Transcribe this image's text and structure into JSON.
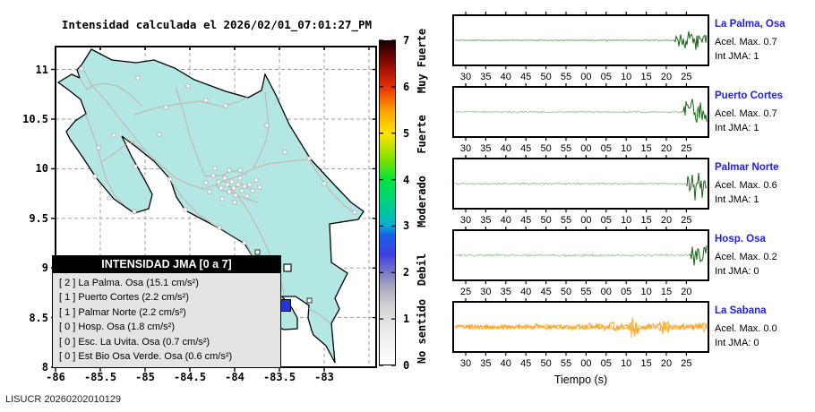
{
  "title": "Intensidad calculada el 2026/02/01_07:01:27_PM",
  "watermark": "LISUCR 20260202010129",
  "map": {
    "x_tick_labels": [
      "-86",
      "-85.5",
      "-85",
      "-84.5",
      "-84",
      "-83.5",
      "-83"
    ],
    "y_tick_labels": [
      "11",
      "10.5",
      "10",
      "9.5",
      "9",
      "8.5",
      "8"
    ],
    "land_color": "#b3e7e3",
    "road_color": "#c3b9b3",
    "coast_color": "#000000",
    "station_marker_color": "#ffffff",
    "epicenter_color": "#2337d8"
  },
  "legend": {
    "title": "INTENSIDAD JMA [0 a 7]",
    "items": [
      "[ 2 ]  La Palma. Osa (15.1 cm/s²)",
      "[ 1 ]  Puerto Cortes (2.2 cm/s²)",
      "[ 1 ]  Palmar Norte (2.2 cm/s²)",
      "[ 0 ]  Hosp. Osa (1.8 cm/s²)",
      "[ 0 ]  Esc. La Uvita. Osa (0.7 cm/s²)",
      "[ 0 ]  Est Bio Osa Verde. Osa (0.6 cm/s²)"
    ]
  },
  "colorbar": {
    "tick_labels": [
      "7",
      "6",
      "5",
      "4",
      "3",
      "2",
      "1",
      "0"
    ],
    "category_labels": [
      "Muy Fuerte",
      "Fuerte",
      "Moderado",
      "Debil",
      "No sentido"
    ],
    "gradient_stops": [
      [
        "0%",
        "#ffffff"
      ],
      [
        "10%",
        "#ececec"
      ],
      [
        "18%",
        "#d2d2d6"
      ],
      [
        "24%",
        "#a8a8c0"
      ],
      [
        "28.6%",
        "#7878c8"
      ],
      [
        "34%",
        "#4040e0"
      ],
      [
        "40%",
        "#1860e8"
      ],
      [
        "43%",
        "#00b0d0"
      ],
      [
        "50%",
        "#00d088"
      ],
      [
        "57.1%",
        "#00e43c"
      ],
      [
        "63%",
        "#78e000"
      ],
      [
        "71.4%",
        "#ffe400"
      ],
      [
        "78.6%",
        "#ffa000"
      ],
      [
        "85.7%",
        "#e63200"
      ],
      [
        "93%",
        "#8c0a00"
      ],
      [
        "100%",
        "#1a0000"
      ]
    ]
  },
  "seismograms": {
    "xlabel": "Tiempo (s)",
    "trace_green": "#176617",
    "trace_orange": "#ffa41c",
    "panels": [
      {
        "station": "La Palma, Osa",
        "acel": "Acel. Max. 0.7",
        "int": "Int JMA: 1",
        "ticks": [
          "30",
          "35",
          "40",
          "45",
          "50",
          "55",
          "00",
          "05",
          "10",
          "15",
          "20",
          "25"
        ]
      },
      {
        "station": "Puerto Cortes",
        "acel": "Acel. Max. 0.7",
        "int": "Int JMA: 1",
        "ticks": [
          "30",
          "35",
          "40",
          "45",
          "50",
          "55",
          "00",
          "05",
          "10",
          "15",
          "20",
          "25"
        ]
      },
      {
        "station": "Palmar Norte",
        "acel": "Acel. Max. 0.6",
        "int": "Int JMA: 1",
        "ticks": [
          "30",
          "35",
          "40",
          "45",
          "50",
          "55",
          "00",
          "05",
          "10",
          "15",
          "20",
          "25"
        ]
      },
      {
        "station": "Hosp. Osa",
        "acel": "Acel. Max. 0.2",
        "int": "Int JMA: 0",
        "ticks": [
          "25",
          "30",
          "35",
          "40",
          "45",
          "50",
          "55",
          "00",
          "05",
          "10",
          "15",
          "20"
        ]
      },
      {
        "station": "La Sabana",
        "acel": "Acel. Max. 0.0",
        "int": "Int JMA: 0",
        "ticks": [
          "30",
          "35",
          "40",
          "45",
          "50",
          "55",
          "00",
          "05",
          "10",
          "15",
          "20",
          "25"
        ]
      }
    ]
  },
  "chart_data": [
    {
      "type": "scatter",
      "title": "Intensidad calculada el 2026/02/01_07:01:27_PM",
      "xlim": [
        -86,
        -82.4
      ],
      "ylim": [
        8,
        11.2
      ],
      "x_ticks": [
        -86,
        -85.5,
        -85,
        -84.5,
        -84,
        -83.5,
        -83
      ],
      "y_ticks": [
        8,
        8.5,
        9,
        9.5,
        10,
        10.5,
        11
      ],
      "grid": true,
      "legend_position": "bottom-left",
      "colorbar_scale": {
        "min": 0,
        "max": 7,
        "categories": [
          "No sentido",
          "Debil",
          "Moderado",
          "Fuerte",
          "Muy Fuerte"
        ]
      },
      "points": [
        {
          "name": "La Palma. Osa",
          "intensity_jma": 2,
          "accel_cm_s2": 15.1
        },
        {
          "name": "Puerto Cortes",
          "intensity_jma": 1,
          "accel_cm_s2": 2.2
        },
        {
          "name": "Palmar Norte",
          "intensity_jma": 1,
          "accel_cm_s2": 2.2
        },
        {
          "name": "Hosp. Osa",
          "intensity_jma": 0,
          "accel_cm_s2": 1.8
        },
        {
          "name": "Esc. La Uvita. Osa",
          "intensity_jma": 0,
          "accel_cm_s2": 0.7
        },
        {
          "name": "Est Bio Osa Verde. Osa",
          "intensity_jma": 0,
          "accel_cm_s2": 0.6
        }
      ]
    },
    {
      "type": "line",
      "series": [
        {
          "name": "La Palma, Osa",
          "acel_max": 0.7,
          "int_jma": 1
        }
      ],
      "x_tick_labels": [
        "30",
        "35",
        "40",
        "45",
        "50",
        "55",
        "00",
        "05",
        "10",
        "15",
        "20",
        "25"
      ],
      "xlabel": "Tiempo (s)",
      "event_onset_s": "~20",
      "signal": "flat then strong burst to end"
    },
    {
      "type": "line",
      "series": [
        {
          "name": "Puerto Cortes",
          "acel_max": 0.7,
          "int_jma": 1
        }
      ],
      "x_tick_labels": [
        "30",
        "35",
        "40",
        "45",
        "50",
        "55",
        "00",
        "05",
        "10",
        "15",
        "20",
        "25"
      ],
      "xlabel": "Tiempo (s)",
      "event_onset_s": "~22",
      "signal": "low noise then strong burst to end"
    },
    {
      "type": "line",
      "series": [
        {
          "name": "Palmar Norte",
          "acel_max": 0.6,
          "int_jma": 1
        }
      ],
      "x_tick_labels": [
        "30",
        "35",
        "40",
        "45",
        "50",
        "55",
        "00",
        "05",
        "10",
        "15",
        "20",
        "25"
      ],
      "xlabel": "Tiempo (s)",
      "event_onset_s": "~22",
      "signal": "flat then sharp spikes at end"
    },
    {
      "type": "line",
      "series": [
        {
          "name": "Hosp. Osa",
          "acel_max": 0.2,
          "int_jma": 0
        }
      ],
      "x_tick_labels": [
        "25",
        "30",
        "35",
        "40",
        "45",
        "50",
        "55",
        "00",
        "05",
        "10",
        "15",
        "20"
      ],
      "xlabel": "Tiempo (s)",
      "event_onset_s": "~22",
      "signal": "flat then short burst at far end"
    },
    {
      "type": "line",
      "series": [
        {
          "name": "La Sabana",
          "acel_max": 0.0,
          "int_jma": 0
        }
      ],
      "x_tick_labels": [
        "30",
        "35",
        "40",
        "45",
        "50",
        "55",
        "00",
        "05",
        "10",
        "15",
        "20",
        "25"
      ],
      "xlabel": "Tiempo (s)",
      "signal": "continuous noise, larger bursts near 10 s and 17 s"
    }
  ]
}
